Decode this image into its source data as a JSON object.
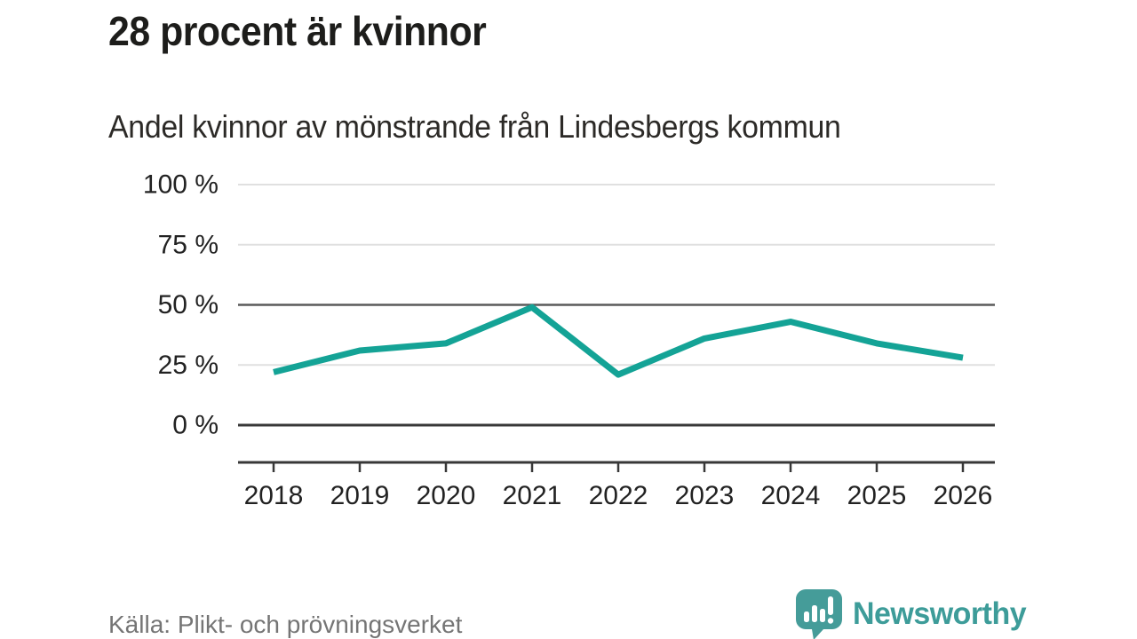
{
  "header": {
    "title": "28 procent är kvinnor",
    "subtitle": "Andel kvinnor av mönstrande från Lindesbergs kommun"
  },
  "chart_data": {
    "type": "line",
    "title": "28 procent är kvinnor",
    "subtitle": "Andel kvinnor av mönstrande från Lindesbergs kommun",
    "categories": [
      "2018",
      "2019",
      "2020",
      "2021",
      "2022",
      "2023",
      "2024",
      "2025",
      "2026"
    ],
    "series": [
      {
        "name": "Andel kvinnor av mönstrande",
        "values": [
          22,
          31,
          34,
          49,
          21,
          36,
          43,
          34,
          28
        ]
      }
    ],
    "xlabel": "",
    "ylabel": "",
    "ylim": [
      0,
      100
    ],
    "yticks": [
      0,
      25,
      50,
      75,
      100
    ],
    "ytick_suffix": " %",
    "grid": true,
    "emphasized_gridlines": [
      50,
      0
    ],
    "legend_position": "none",
    "line_color": "#14a396"
  },
  "footer": {
    "source": "Källa: Plikt- och prövningsverket",
    "brand_name": "Newsworthy",
    "brand_icon": "speech-bubble-bar-chart-icon"
  },
  "colors": {
    "background": "#ffffff",
    "title_text": "#1d1d1b",
    "axis_text": "#222222",
    "grid_light": "#e0e0e0",
    "grid_mid": "#5a5a5a",
    "grid_dark": "#383838",
    "source_text": "#757575",
    "brand_teal": "#3d9c99",
    "line_teal": "#14a396"
  }
}
